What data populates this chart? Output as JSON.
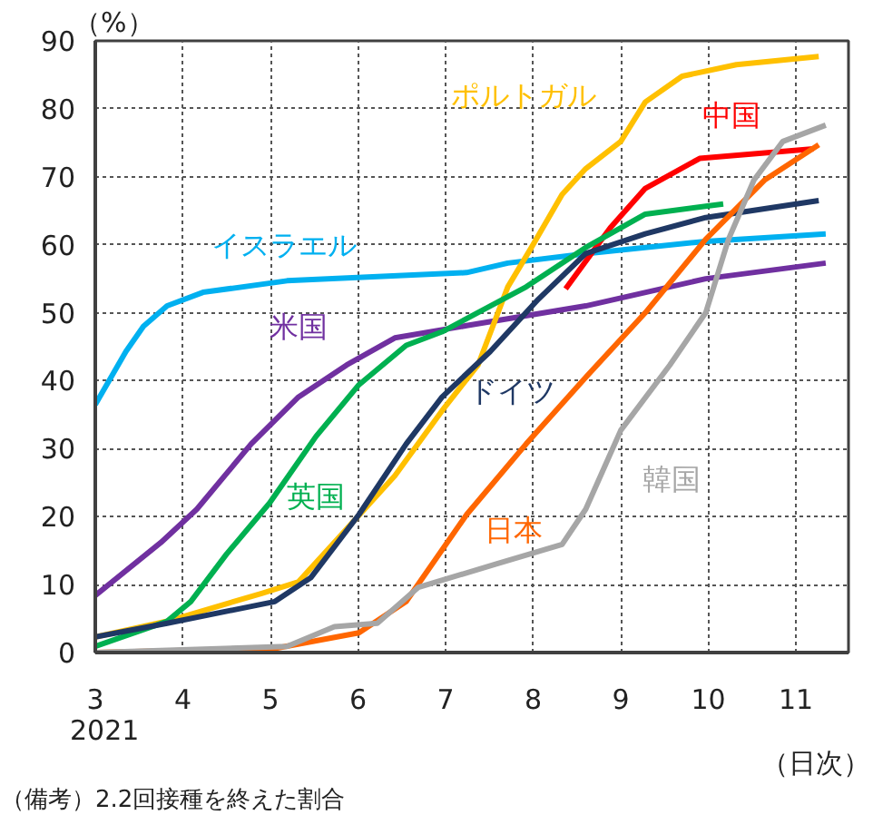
{
  "chart_data": {
    "type": "line",
    "ylabel": "（%）",
    "xlabel": "（日次）",
    "x": [
      3,
      3.35,
      3.55,
      3.82,
      4.23,
      5.19,
      7.24,
      7.71,
      8.6,
      9.97,
      11.34
    ],
    "xlim": [
      3,
      11.6
    ],
    "xticks": [
      3,
      4,
      5,
      6,
      7,
      8,
      9,
      10,
      11
    ],
    "ylim": [
      0,
      90
    ],
    "yticks": [
      0,
      10,
      20,
      30,
      40,
      50,
      60,
      70,
      80,
      90
    ],
    "grid": true,
    "line_style": "solid",
    "marker": "none",
    "annotations": [
      "2021",
      "（備考）2.2回接種を終えた割合"
    ],
    "series": [
      {
        "name": "イスラエル",
        "color": "#00b0f0",
        "values": [
          36.5,
          44.3,
          48,
          51,
          53,
          54.7,
          55.9,
          57.3,
          58.7,
          60.5,
          61.6
        ]
      },
      {
        "name": "米国",
        "color": "#7030a0",
        "x": [
          3,
          3.75,
          4.16,
          4.78,
          5.32,
          5.87,
          6.42,
          7.24,
          8.6,
          9.97,
          11.34
        ],
        "values": [
          8.4,
          16.2,
          21.1,
          30.7,
          37.6,
          42.3,
          46.3,
          48.1,
          51,
          55,
          57.3
        ]
      },
      {
        "name": "ポルトガル",
        "color": "#ffc000",
        "x": [
          3,
          3.82,
          4.9,
          5.32,
          5.87,
          6.42,
          6.96,
          7.37,
          7.71,
          7.98,
          8.33,
          8.6,
          9.0,
          9.28,
          9.7,
          10.32,
          11.26
        ],
        "values": [
          2.3,
          4.6,
          8.7,
          10.4,
          18.2,
          26,
          35.6,
          42.3,
          53.8,
          59.6,
          67.4,
          71.2,
          75.2,
          81,
          84.8,
          86.5,
          87.7
        ]
      },
      {
        "name": "中国",
        "color": "#ff0000",
        "x": [
          8.37,
          8.88,
          9.28,
          9.9,
          11.2
        ],
        "values": [
          53.5,
          62.5,
          68.3,
          72.7,
          74.1
        ]
      },
      {
        "name": "英国",
        "color": "#00b050",
        "x": [
          3,
          3.82,
          4.09,
          4.5,
          4.99,
          5.52,
          6.01,
          6.55,
          6.96,
          7.92,
          8.6,
          9.28,
          10.17
        ],
        "values": [
          0.9,
          4.6,
          7.5,
          14.5,
          22,
          31.8,
          39.4,
          45.2,
          47.2,
          53.8,
          59.6,
          64.5,
          66
        ]
      },
      {
        "name": "ドイツ",
        "color": "#1f3864",
        "x": [
          3,
          3.82,
          5.05,
          5.46,
          6.01,
          6.55,
          6.96,
          7.51,
          8.06,
          8.6,
          9.28,
          9.97,
          11.26
        ],
        "values": [
          2.3,
          4.3,
          7.5,
          11,
          20.3,
          30.7,
          37.6,
          44.3,
          52,
          58.7,
          61.6,
          64,
          66.5
        ]
      },
      {
        "name": "日本",
        "color": "#ff6600",
        "x": [
          3,
          5.05,
          6.01,
          6.55,
          7.24,
          7.92,
          8.6,
          9.28,
          9.97,
          10.64,
          11.26
        ],
        "values": [
          0,
          0.6,
          2.9,
          7.5,
          20.3,
          30.7,
          40.5,
          50,
          60.8,
          69.5,
          74.7
        ]
      },
      {
        "name": "韓国",
        "color": "#a6a6a6",
        "x": [
          3,
          5.19,
          5.73,
          6.22,
          6.69,
          7.57,
          8.33,
          8.6,
          9.0,
          9.56,
          9.97,
          10.23,
          10.52,
          10.85,
          11.34
        ],
        "values": [
          0,
          0.9,
          3.8,
          4.3,
          9.6,
          13,
          15.9,
          21.1,
          32.7,
          42.3,
          50,
          60.8,
          69.5,
          75.2,
          77.6
        ]
      }
    ]
  }
}
